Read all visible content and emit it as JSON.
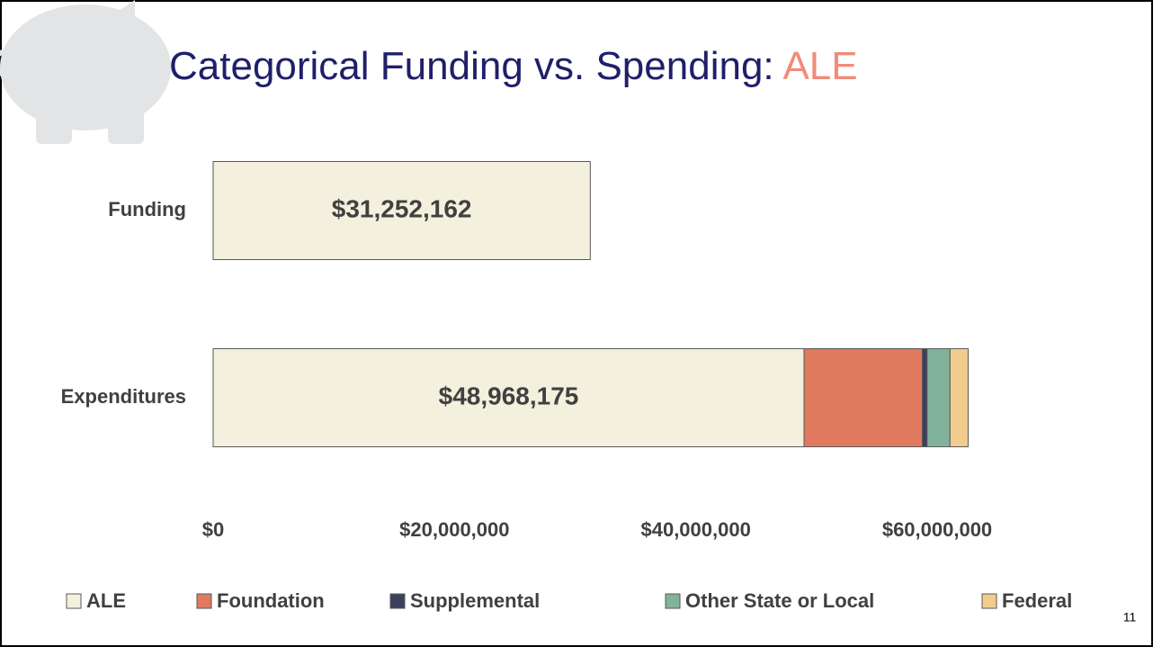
{
  "chart_data": {
    "type": "stacked_barh",
    "title": "Categorical Funding vs. Spending: ",
    "title_highlight": "ALE",
    "page_number": "11",
    "categories": [
      "Funding",
      "Expenditures"
    ],
    "series": [
      {
        "name": "ALE",
        "color": "#f3f0de",
        "values": [
          31252162,
          48968175
        ],
        "value_labels": [
          "$31,252,162",
          "$48,968,175"
        ]
      },
      {
        "name": "Foundation",
        "color": "#e07a5f",
        "values": [
          null,
          9800000
        ]
      },
      {
        "name": "Supplemental",
        "color": "#3d405b",
        "values": [
          null,
          400000
        ]
      },
      {
        "name": "Other State or Local",
        "color": "#81b29a",
        "values": [
          null,
          1900000
        ]
      },
      {
        "name": "Federal",
        "color": "#f2cc8f",
        "values": [
          null,
          1500000
        ]
      }
    ],
    "xlim": [
      0,
      60000000
    ],
    "xticks": [
      {
        "value": 0,
        "label": "$0"
      },
      {
        "value": 20000000,
        "label": "$20,000,000"
      },
      {
        "value": 40000000,
        "label": "$40,000,000"
      },
      {
        "value": 60000000,
        "label": "$60,000,000"
      }
    ]
  }
}
